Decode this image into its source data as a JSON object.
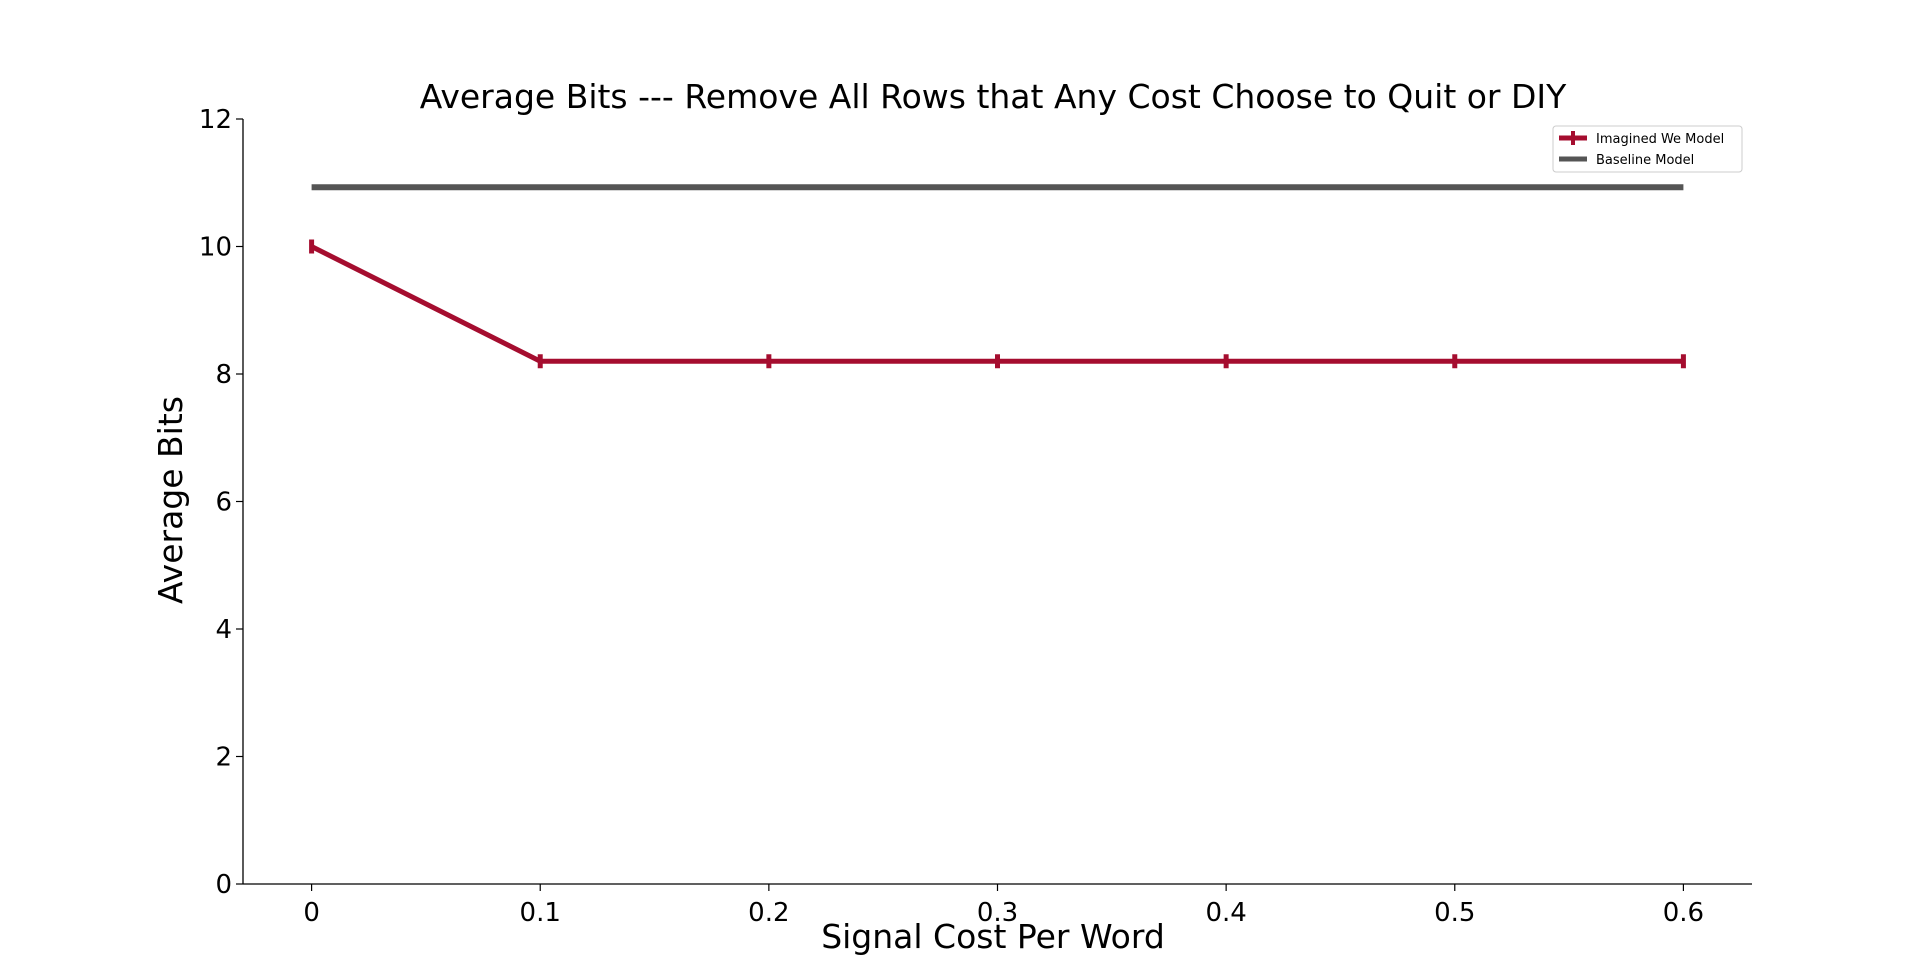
{
  "chart_data": {
    "type": "line",
    "title": "Average Bits --- Remove All Rows that Any Cost Choose to Quit or DIY",
    "xlabel": "Signal Cost Per Word",
    "ylabel": "Average Bits",
    "x": [
      0,
      0.1,
      0.2,
      0.3,
      0.4,
      0.5,
      0.6
    ],
    "x_tick_labels": [
      "0",
      "0.1",
      "0.2",
      "0.3",
      "0.4",
      "0.5",
      "0.6"
    ],
    "y_ticks": [
      0,
      2,
      4,
      6,
      8,
      10,
      12
    ],
    "y_tick_labels": [
      "0",
      "2",
      "4",
      "6",
      "8",
      "10",
      "12"
    ],
    "xlim": [
      -0.03,
      0.63
    ],
    "ylim": [
      0,
      12
    ],
    "grid": false,
    "legend_position": "top-right",
    "series": [
      {
        "name": "Imagined We Model",
        "color": "#a50d2f",
        "values": [
          10.0,
          8.2,
          8.2,
          8.2,
          8.2,
          8.2,
          8.2
        ],
        "errorbars": true
      },
      {
        "name": "Baseline Model",
        "color": "#555555",
        "values": [
          10.93,
          10.93,
          10.93,
          10.93,
          10.93,
          10.93,
          10.93
        ],
        "errorbars": false
      }
    ]
  }
}
